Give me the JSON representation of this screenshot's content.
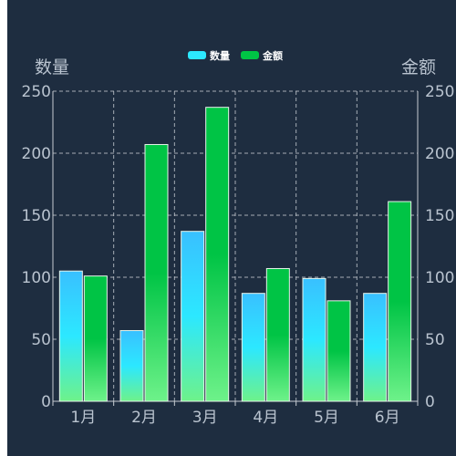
{
  "chart_data": {
    "type": "bar",
    "categories": [
      "1月",
      "2月",
      "3月",
      "4月",
      "5月",
      "6月"
    ],
    "series": [
      {
        "name": "数量",
        "values": [
          105,
          57,
          137,
          87,
          99,
          87
        ],
        "axis": "left",
        "gradient": [
          "#39c0ff",
          "#2ce8ff",
          "#6ef28a"
        ]
      },
      {
        "name": "金额",
        "values": [
          101,
          207,
          237,
          107,
          81,
          161
        ],
        "axis": "right",
        "gradient": [
          "#00c445",
          "#00c445",
          "#6ef28a"
        ]
      }
    ],
    "ylabel": "数量",
    "y2label": "金额",
    "ylim": [
      0,
      250
    ],
    "y2lim": [
      0,
      250
    ],
    "yticks": [
      0,
      50,
      100,
      150,
      200,
      250
    ],
    "grid": true,
    "legend": "top-center",
    "colors": {
      "background": "#1e2d40",
      "grid": "#c7ccd2",
      "text": "#b9c3cf",
      "legend_text": "#ffffff"
    }
  }
}
